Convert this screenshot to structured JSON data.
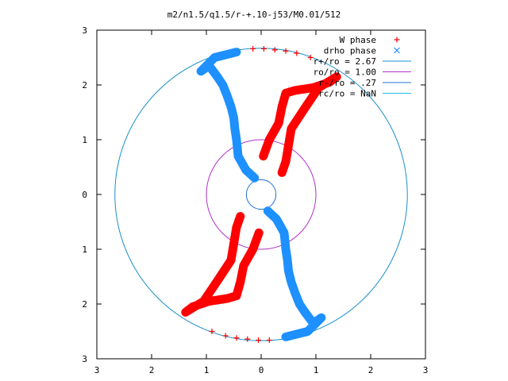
{
  "chart_data": {
    "type": "scatter",
    "title": "m2/n1.5/q1.5/r-+.10-j53/M0.01/512",
    "xlabel": "",
    "ylabel": "",
    "xlim": [
      -3,
      3
    ],
    "ylim": [
      -3,
      3
    ],
    "x_ticks": [
      -3,
      -2,
      -1,
      0,
      1,
      2,
      3
    ],
    "y_ticks": [
      -3,
      -2,
      -1,
      0,
      1,
      2,
      3
    ],
    "x_tick_labels": [
      "3",
      "2",
      "1",
      "0",
      "1",
      "2",
      "3"
    ],
    "y_tick_labels": [
      "3",
      "2",
      "1",
      "0",
      "1",
      "2",
      "3"
    ],
    "grid": false,
    "legend_position": "top-right",
    "series": [
      {
        "name": "W phase",
        "marker": "plus",
        "color": "#ff0000",
        "x": [
          -0.38,
          -0.45,
          -0.55,
          -0.78,
          -1.05,
          -1.38,
          -1.25,
          -0.95,
          -0.62,
          -0.45,
          -0.38,
          -0.32,
          -0.15,
          -0.04,
          0.04,
          0.15,
          0.32,
          0.38,
          0.45,
          0.62,
          0.95,
          1.25,
          1.38,
          1.05,
          0.78,
          0.55,
          0.45,
          0.38
        ],
        "y": [
          -0.4,
          -0.6,
          -1.2,
          -1.55,
          -1.95,
          -2.15,
          -2.05,
          -1.95,
          -1.9,
          -1.85,
          -1.6,
          -1.3,
          -1.0,
          -0.7,
          0.7,
          1.0,
          1.3,
          1.6,
          1.85,
          1.9,
          1.95,
          2.05,
          2.15,
          1.95,
          1.55,
          1.2,
          0.6,
          0.4
        ],
        "arc_x": [
          -0.15,
          0.05,
          0.25,
          0.45,
          0.65,
          0.9,
          -0.9,
          -0.65,
          -0.45,
          -0.25,
          -0.05,
          0.15
        ],
        "arc_y": [
          2.66,
          2.66,
          2.64,
          2.62,
          2.58,
          2.5,
          -2.5,
          -2.58,
          -2.62,
          -2.64,
          -2.66,
          -2.66
        ]
      },
      {
        "name": "drho phase",
        "marker": "cross",
        "color": "#1e90ff",
        "x": [
          -0.12,
          -0.28,
          -0.42,
          -0.45,
          -0.48,
          -0.5,
          -0.55,
          -0.62,
          -0.7,
          -0.8,
          -0.95,
          -1.1,
          -0.85,
          -0.45,
          0.12,
          0.28,
          0.42,
          0.45,
          0.48,
          0.5,
          0.55,
          0.62,
          0.7,
          0.8,
          0.95,
          1.1,
          0.85,
          0.45
        ],
        "y": [
          0.3,
          0.45,
          0.7,
          1.0,
          1.2,
          1.4,
          1.6,
          1.8,
          2.0,
          2.15,
          2.35,
          2.25,
          2.5,
          2.6,
          -0.3,
          -0.45,
          -0.7,
          -1.0,
          -1.2,
          -1.4,
          -1.6,
          -1.8,
          -2.0,
          -2.15,
          -2.35,
          -2.25,
          -2.5,
          -2.6
        ]
      }
    ],
    "circles": [
      {
        "label": "r+/ro = 2.67",
        "r": 2.67,
        "color": "#1a8fc8"
      },
      {
        "label": "ro/ro = 1.00",
        "r": 1.0,
        "color": "#b030c8"
      },
      {
        "label": "r-/ro = .27",
        "r": 0.27,
        "color": "#2070d0"
      },
      {
        "label": "rc/ro = NaN",
        "r": null,
        "color": "#20c0e0"
      }
    ]
  }
}
